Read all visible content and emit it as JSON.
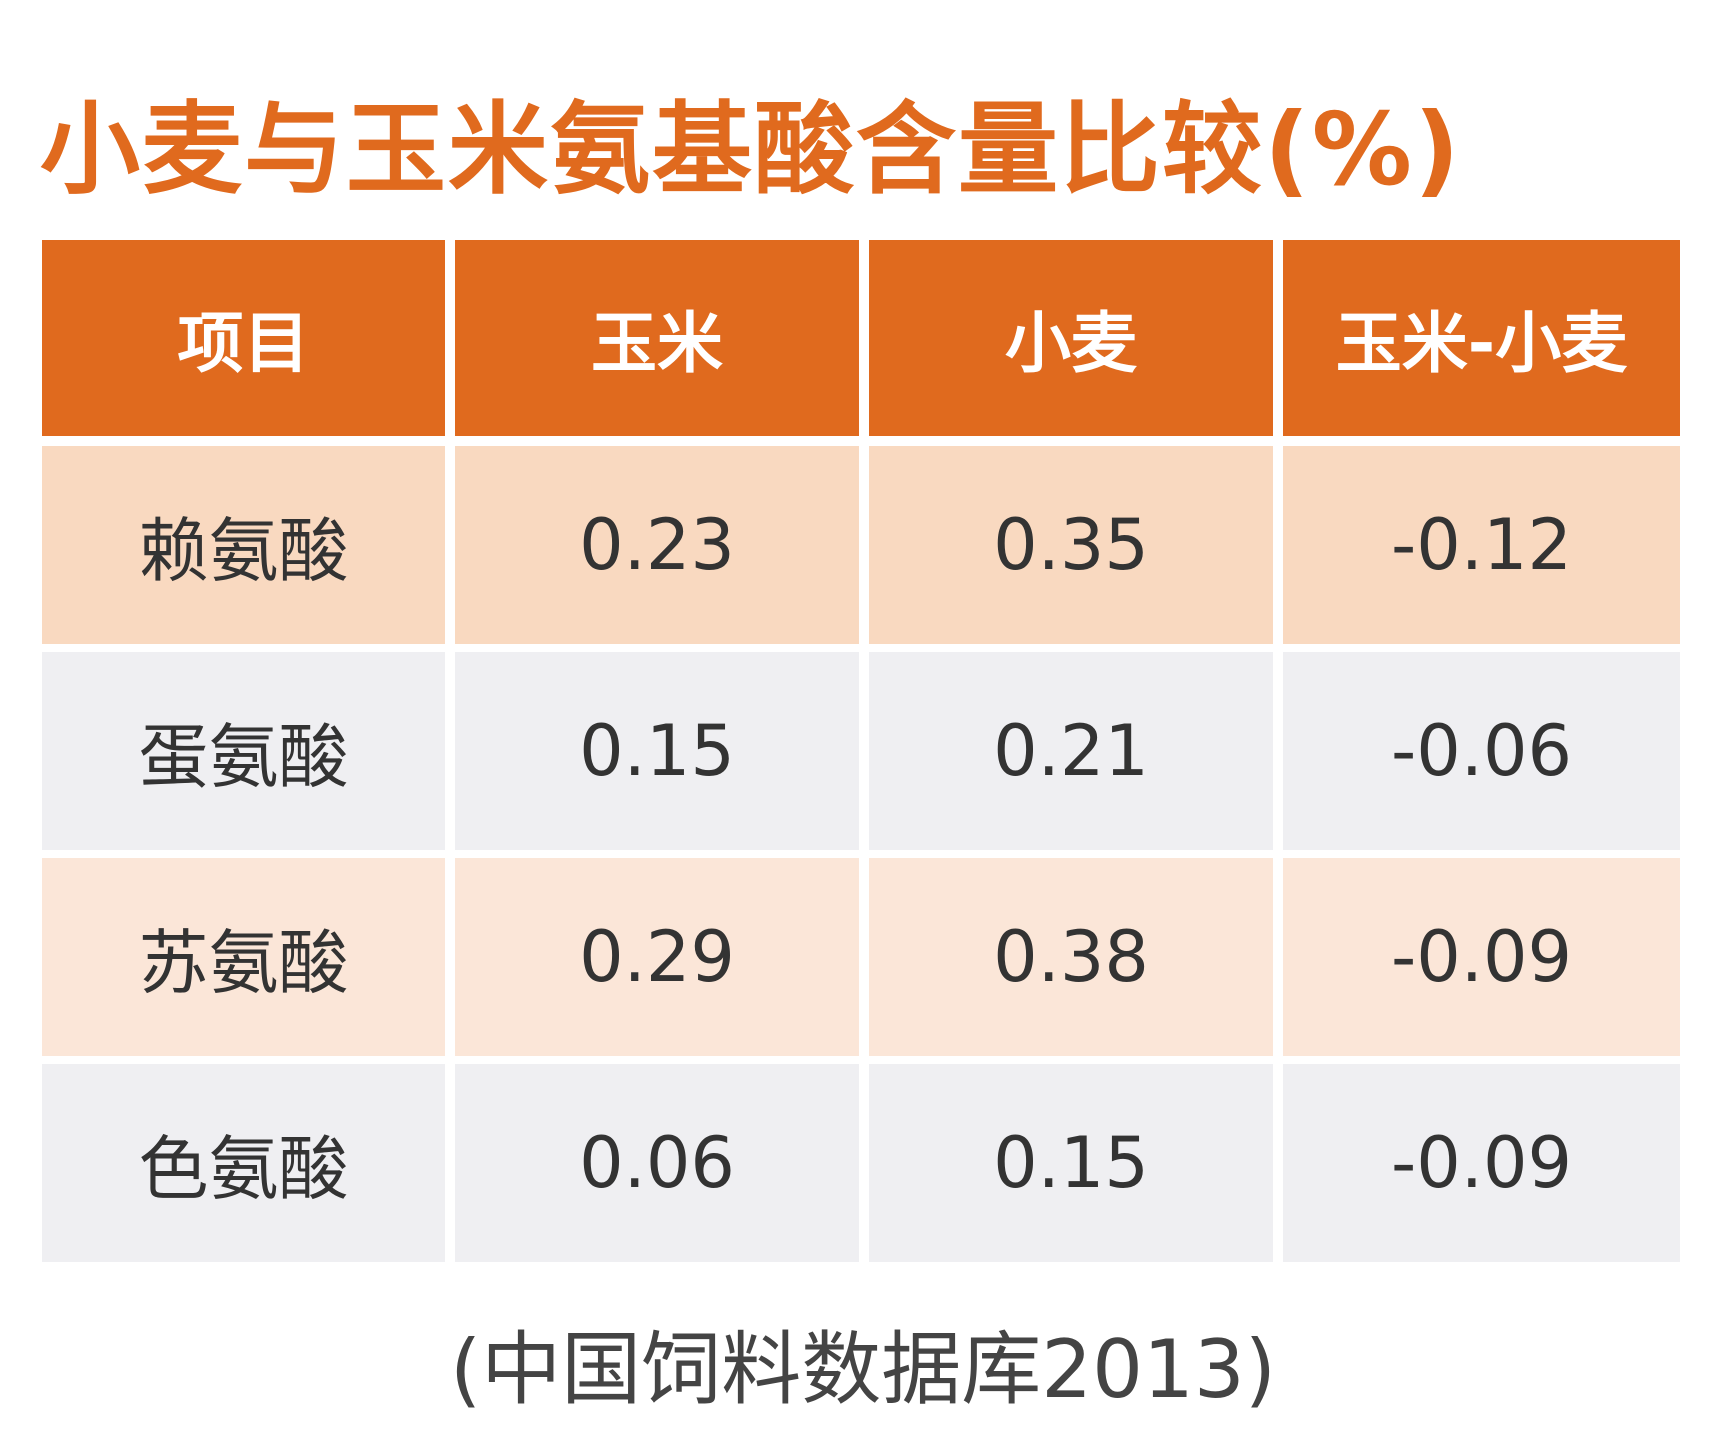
{
  "title": "小麦与玉米氨基酸含量比较(%)",
  "source": "(中国饲料数据库2013)",
  "chart_data": {
    "type": "table",
    "title": "小麦与玉米氨基酸含量比较(%)",
    "columns": [
      "项目",
      "玉米",
      "小麦",
      "玉米-小麦"
    ],
    "rows": [
      [
        "赖氨酸",
        "0.23",
        "0.35",
        "-0.12"
      ],
      [
        "蛋氨酸",
        "0.15",
        "0.21",
        "-0.06"
      ],
      [
        "苏氨酸",
        "0.29",
        "0.38",
        "-0.09"
      ],
      [
        "色氨酸",
        "0.06",
        "0.15",
        "-0.09"
      ]
    ],
    "source": "(中国饲料数据库2013)"
  },
  "colors": {
    "accent": "#e06a1e",
    "row_highlight": "#f9d9c0",
    "row_highlight_light": "#fbe6d8",
    "row_alt": "#efeff2"
  }
}
